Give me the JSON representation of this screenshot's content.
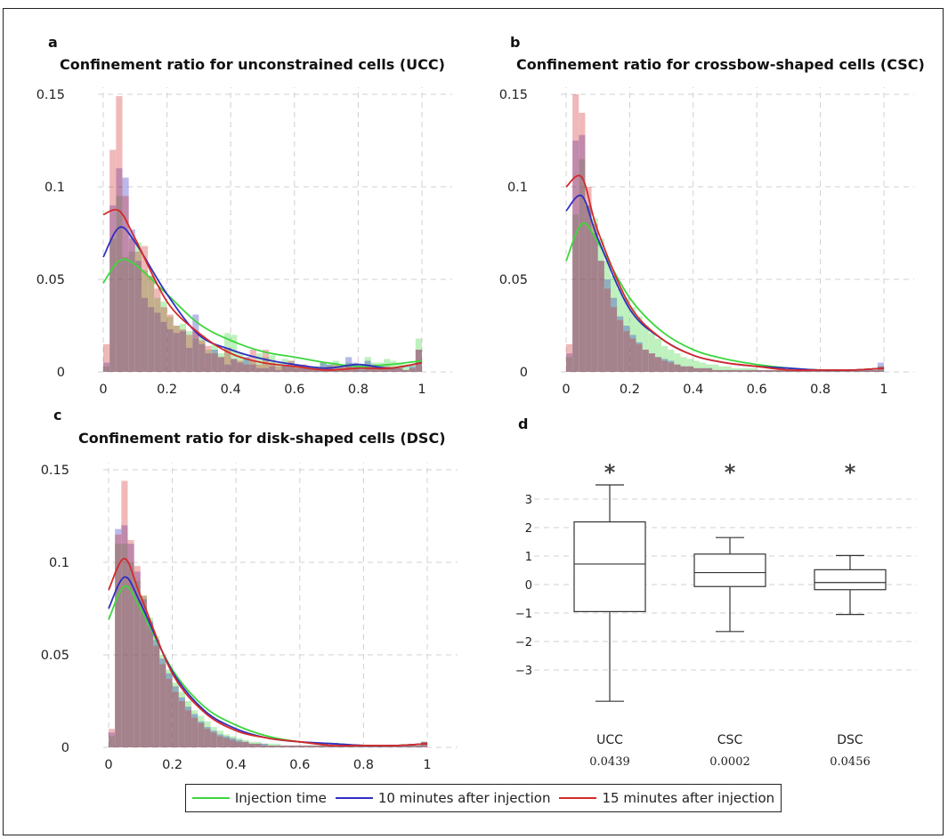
{
  "legend": {
    "items": [
      {
        "label": "Injection time",
        "color": "#3dd63d"
      },
      {
        "label": "10 minutes after injection",
        "color": "#2f2fc0"
      },
      {
        "label": "15 minutes after injection",
        "color": "#d42a2a"
      }
    ]
  },
  "chart_data": [
    {
      "panel": "a",
      "type": "bar",
      "title": "Confinement ratio for unconstrained cells (UCC)",
      "xlim": [
        0,
        1
      ],
      "ylim": [
        0,
        0.15
      ],
      "xticks": [
        "0",
        "0.2",
        "0.4",
        "0.6",
        "0.8",
        "1"
      ],
      "yticks": [
        "0",
        "0.05",
        "0.1",
        "0.15"
      ],
      "grid": true,
      "bin_width": 0.02,
      "series": [
        {
          "color": "#3dd63d",
          "hist": [
            0.003,
            0.072,
            0.095,
            0.062,
            0.065,
            0.07,
            0.055,
            0.052,
            0.04,
            0.038,
            0.03,
            0.025,
            0.026,
            0.022,
            0.018,
            0.02,
            0.012,
            0.015,
            0.01,
            0.021,
            0.02,
            0.01,
            0.008,
            0.006,
            0.01,
            0.008,
            0.009,
            0.005,
            0.007,
            0.006,
            0.004,
            0.003,
            0.002,
            0.003,
            0.005,
            0.004,
            0.006,
            0.004,
            0.005,
            0.003,
            0.002,
            0.008,
            0.005,
            0.005,
            0.007,
            0.006,
            0.005,
            0.004,
            0.004,
            0.018
          ],
          "kde": [
            [
              0,
              0.048
            ],
            [
              0.05,
              0.06
            ],
            [
              0.1,
              0.058
            ],
            [
              0.2,
              0.042
            ],
            [
              0.3,
              0.026
            ],
            [
              0.4,
              0.017
            ],
            [
              0.5,
              0.011
            ],
            [
              0.6,
              0.008
            ],
            [
              0.7,
              0.005
            ],
            [
              0.8,
              0.003
            ],
            [
              0.9,
              0.004
            ],
            [
              1,
              0.006
            ]
          ]
        },
        {
          "color": "#2f2fc0",
          "hist": [
            0.005,
            0.09,
            0.11,
            0.105,
            0.077,
            0.06,
            0.04,
            0.035,
            0.032,
            0.027,
            0.023,
            0.021,
            0.022,
            0.013,
            0.031,
            0.015,
            0.01,
            0.012,
            0.008,
            0.004,
            0.007,
            0.005,
            0.008,
            0.004,
            0.002,
            0.002,
            0.003,
            0.001,
            0.004,
            0.003,
            0.002,
            0.002,
            0.003,
            0.002,
            0.005,
            0.004,
            0.001,
            0.002,
            0.008,
            0.005,
            0.003,
            0.006,
            0.004,
            0.003,
            0.002,
            0.002,
            0.002,
            0.001,
            0.003,
            0.012
          ],
          "kde": [
            [
              0,
              0.062
            ],
            [
              0.05,
              0.078
            ],
            [
              0.1,
              0.07
            ],
            [
              0.2,
              0.042
            ],
            [
              0.3,
              0.02
            ],
            [
              0.4,
              0.012
            ],
            [
              0.5,
              0.007
            ],
            [
              0.6,
              0.004
            ],
            [
              0.7,
              0.002
            ],
            [
              0.8,
              0.004
            ],
            [
              0.9,
              0.002
            ],
            [
              1,
              0.005
            ]
          ]
        },
        {
          "color": "#d42a2a",
          "hist": [
            0.015,
            0.12,
            0.149,
            0.095,
            0.072,
            0.065,
            0.068,
            0.052,
            0.045,
            0.035,
            0.031,
            0.025,
            0.023,
            0.02,
            0.022,
            0.017,
            0.014,
            0.01,
            0.008,
            0.013,
            0.007,
            0.006,
            0.004,
            0.012,
            0.004,
            0.012,
            0.005,
            0.003,
            0.003,
            0.006,
            0.003,
            0.004,
            0.002,
            0.002,
            0.002,
            0.003,
            0.004,
            0.003,
            0.003,
            0.002,
            0.001,
            0.003,
            0.003,
            0.002,
            0.003,
            0.002,
            0.002,
            0.001,
            0.002,
            0.012
          ],
          "kde": [
            [
              0,
              0.085
            ],
            [
              0.05,
              0.087
            ],
            [
              0.1,
              0.072
            ],
            [
              0.2,
              0.038
            ],
            [
              0.3,
              0.021
            ],
            [
              0.4,
              0.01
            ],
            [
              0.5,
              0.005
            ],
            [
              0.6,
              0.003
            ],
            [
              0.7,
              0.001
            ],
            [
              0.8,
              0.002
            ],
            [
              0.9,
              0.002
            ],
            [
              1,
              0.005
            ]
          ]
        }
      ]
    },
    {
      "panel": "b",
      "type": "bar",
      "title": "Confinement ratio for crossbow-shaped cells (CSC)",
      "xlim": [
        0,
        1
      ],
      "ylim": [
        0,
        0.15
      ],
      "xticks": [
        "0",
        "0.2",
        "0.4",
        "0.6",
        "0.8",
        "1"
      ],
      "yticks": [
        "0",
        "0.05",
        "0.1",
        "0.15"
      ],
      "grid": true,
      "bin_width": 0.02,
      "series": [
        {
          "color": "#3dd63d",
          "hist": [
            0.008,
            0.085,
            0.115,
            0.09,
            0.083,
            0.072,
            0.06,
            0.052,
            0.045,
            0.04,
            0.035,
            0.03,
            0.025,
            0.021,
            0.018,
            0.014,
            0.012,
            0.01,
            0.008,
            0.007,
            0.006,
            0.005,
            0.004,
            0.004,
            0.003,
            0.003,
            0.002,
            0.002,
            0.002,
            0.002,
            0.001,
            0.001,
            0.001,
            0.001,
            0.001,
            0.001,
            0.001,
            0.001,
            0.001,
            0.001,
            0.001,
            0.001,
            0.001,
            0.001,
            0.001,
            0.001,
            0.001,
            0.001,
            0.001,
            0.003
          ],
          "kde": [
            [
              0,
              0.06
            ],
            [
              0.05,
              0.08
            ],
            [
              0.1,
              0.07
            ],
            [
              0.2,
              0.04
            ],
            [
              0.3,
              0.022
            ],
            [
              0.4,
              0.012
            ],
            [
              0.5,
              0.007
            ],
            [
              0.6,
              0.004
            ],
            [
              0.7,
              0.002
            ],
            [
              0.8,
              0.001
            ],
            [
              0.9,
              0.001
            ],
            [
              1,
              0.002
            ]
          ]
        },
        {
          "color": "#2f2fc0",
          "hist": [
            0.01,
            0.125,
            0.128,
            0.09,
            0.075,
            0.06,
            0.05,
            0.04,
            0.03,
            0.025,
            0.02,
            0.016,
            0.012,
            0.01,
            0.008,
            0.007,
            0.006,
            0.004,
            0.003,
            0.003,
            0.002,
            0.002,
            0.002,
            0.001,
            0.001,
            0.001,
            0.001,
            0.001,
            0.001,
            0.001,
            0.001,
            0.001,
            0.001,
            0.001,
            0.001,
            0.001,
            0.001,
            0.001,
            0.001,
            0.001,
            0.001,
            0.001,
            0.001,
            0.001,
            0.001,
            0.001,
            0.001,
            0.001,
            0.001,
            0.005
          ],
          "kde": [
            [
              0,
              0.087
            ],
            [
              0.05,
              0.095
            ],
            [
              0.1,
              0.072
            ],
            [
              0.2,
              0.034
            ],
            [
              0.3,
              0.018
            ],
            [
              0.4,
              0.009
            ],
            [
              0.5,
              0.005
            ],
            [
              0.6,
              0.003
            ],
            [
              0.7,
              0.002
            ],
            [
              0.8,
              0.001
            ],
            [
              0.9,
              0.001
            ],
            [
              1,
              0.002
            ]
          ]
        },
        {
          "color": "#d42a2a",
          "hist": [
            0.015,
            0.15,
            0.14,
            0.1,
            0.08,
            0.06,
            0.045,
            0.035,
            0.028,
            0.022,
            0.018,
            0.015,
            0.012,
            0.01,
            0.008,
            0.006,
            0.005,
            0.004,
            0.003,
            0.003,
            0.002,
            0.002,
            0.002,
            0.001,
            0.001,
            0.001,
            0.001,
            0.001,
            0.001,
            0.001,
            0.001,
            0.001,
            0.001,
            0.001,
            0.001,
            0.001,
            0.001,
            0.001,
            0.001,
            0.001,
            0.001,
            0.001,
            0.001,
            0.001,
            0.001,
            0.001,
            0.001,
            0.001,
            0.001,
            0.003
          ],
          "kde": [
            [
              0,
              0.1
            ],
            [
              0.05,
              0.105
            ],
            [
              0.1,
              0.076
            ],
            [
              0.2,
              0.036
            ],
            [
              0.3,
              0.018
            ],
            [
              0.4,
              0.009
            ],
            [
              0.5,
              0.005
            ],
            [
              0.6,
              0.003
            ],
            [
              0.7,
              0.001
            ],
            [
              0.8,
              0.001
            ],
            [
              0.9,
              0.001
            ],
            [
              1,
              0.002
            ]
          ]
        }
      ]
    },
    {
      "panel": "c",
      "type": "bar",
      "title": "Confinement ratio for disk-shaped cells (DSC)",
      "xlim": [
        0,
        1
      ],
      "ylim": [
        0,
        0.15
      ],
      "xticks": [
        "0",
        "0.2",
        "0.4",
        "0.6",
        "0.8",
        "1"
      ],
      "yticks": [
        "0",
        "0.05",
        "0.1",
        "0.15"
      ],
      "grid": true,
      "bin_width": 0.02,
      "series": [
        {
          "color": "#3dd63d",
          "hist": [
            0.006,
            0.11,
            0.11,
            0.1,
            0.09,
            0.082,
            0.07,
            0.06,
            0.05,
            0.042,
            0.035,
            0.03,
            0.025,
            0.02,
            0.017,
            0.014,
            0.011,
            0.009,
            0.007,
            0.006,
            0.005,
            0.004,
            0.003,
            0.003,
            0.002,
            0.002,
            0.002,
            0.001,
            0.001,
            0.001,
            0.001,
            0.001,
            0.001,
            0.001,
            0.001,
            0.001,
            0.001,
            0.001,
            0.001,
            0.001,
            0.001,
            0.001,
            0.001,
            0.001,
            0.001,
            0.001,
            0.001,
            0.001,
            0.001,
            0.003
          ],
          "kde": [
            [
              0,
              0.069
            ],
            [
              0.05,
              0.087
            ],
            [
              0.1,
              0.075
            ],
            [
              0.2,
              0.042
            ],
            [
              0.3,
              0.022
            ],
            [
              0.4,
              0.012
            ],
            [
              0.5,
              0.006
            ],
            [
              0.6,
              0.003
            ],
            [
              0.7,
              0.002
            ],
            [
              0.8,
              0.001
            ],
            [
              0.9,
              0.001
            ],
            [
              1,
              0.002
            ]
          ]
        },
        {
          "color": "#2f2fc0",
          "hist": [
            0.008,
            0.118,
            0.12,
            0.11,
            0.095,
            0.08,
            0.068,
            0.058,
            0.048,
            0.04,
            0.033,
            0.027,
            0.022,
            0.018,
            0.014,
            0.011,
            0.009,
            0.007,
            0.006,
            0.005,
            0.004,
            0.003,
            0.002,
            0.002,
            0.002,
            0.001,
            0.001,
            0.001,
            0.001,
            0.001,
            0.001,
            0.001,
            0.001,
            0.001,
            0.001,
            0.001,
            0.001,
            0.001,
            0.001,
            0.001,
            0.001,
            0.001,
            0.001,
            0.001,
            0.001,
            0.001,
            0.001,
            0.001,
            0.001,
            0.003
          ],
          "kde": [
            [
              0,
              0.075
            ],
            [
              0.05,
              0.092
            ],
            [
              0.1,
              0.078
            ],
            [
              0.2,
              0.041
            ],
            [
              0.3,
              0.02
            ],
            [
              0.4,
              0.01
            ],
            [
              0.5,
              0.005
            ],
            [
              0.6,
              0.003
            ],
            [
              0.7,
              0.002
            ],
            [
              0.8,
              0.001
            ],
            [
              0.9,
              0.001
            ],
            [
              1,
              0.002
            ]
          ]
        },
        {
          "color": "#d42a2a",
          "hist": [
            0.01,
            0.115,
            0.144,
            0.112,
            0.098,
            0.082,
            0.066,
            0.055,
            0.045,
            0.037,
            0.03,
            0.025,
            0.02,
            0.016,
            0.013,
            0.01,
            0.008,
            0.006,
            0.005,
            0.004,
            0.003,
            0.003,
            0.002,
            0.002,
            0.001,
            0.001,
            0.001,
            0.001,
            0.001,
            0.001,
            0.001,
            0.001,
            0.001,
            0.001,
            0.001,
            0.001,
            0.001,
            0.001,
            0.001,
            0.001,
            0.001,
            0.001,
            0.001,
            0.001,
            0.001,
            0.001,
            0.001,
            0.001,
            0.001,
            0.003
          ],
          "kde": [
            [
              0,
              0.085
            ],
            [
              0.05,
              0.102
            ],
            [
              0.1,
              0.082
            ],
            [
              0.2,
              0.04
            ],
            [
              0.3,
              0.019
            ],
            [
              0.4,
              0.009
            ],
            [
              0.5,
              0.005
            ],
            [
              0.6,
              0.003
            ],
            [
              0.7,
              0.001
            ],
            [
              0.8,
              0.001
            ],
            [
              0.9,
              0.001
            ],
            [
              1,
              0.002
            ]
          ]
        }
      ]
    },
    {
      "panel": "d",
      "type": "box",
      "ylim": [
        -4.2,
        3.6
      ],
      "yticks": [
        "3",
        "2",
        "1",
        "0",
        "−1",
        "−2",
        "−3"
      ],
      "ytick_values": [
        3,
        2,
        1,
        0,
        -1,
        -2,
        -3
      ],
      "grid": true,
      "boxes": [
        {
          "label": "UCC",
          "pvalue": "0.0439",
          "marker": "*",
          "whisker_low": -4.1,
          "q1": -0.95,
          "median": 0.72,
          "q3": 2.2,
          "whisker_high": 3.5
        },
        {
          "label": "CSC",
          "pvalue": "0.0002",
          "marker": "*",
          "whisker_low": -1.65,
          "q1": -0.07,
          "median": 0.42,
          "q3": 1.07,
          "whisker_high": 1.65
        },
        {
          "label": "DSC",
          "pvalue": "0.0456",
          "marker": "*",
          "whisker_low": -1.05,
          "q1": -0.18,
          "median": 0.07,
          "q3": 0.52,
          "whisker_high": 1.02
        }
      ]
    }
  ]
}
